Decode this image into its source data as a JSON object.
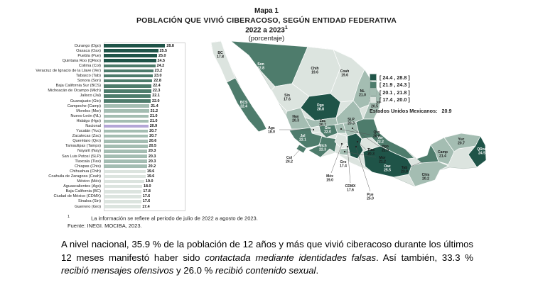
{
  "figure": {
    "title_line1": "Mapa 1",
    "title_line2": "POBLACIÓN QUE VIVIÓ CIBERACOSO, SEGÚN ENTIDAD FEDERATIVA",
    "title_line3": "2022 a 2023",
    "title_superscript": "1",
    "title_line4": "(porcentaje)",
    "footnote_marker": "1",
    "footnote_text": "La información se refiere al periodo de julio de 2022 a agosto de 2023.",
    "source": "Fuente: INEGI. MOCIBA, 2023."
  },
  "chart_data": {
    "type": "bar",
    "orientation": "horizontal",
    "title": "Población que vivió ciberacoso, según entidad federativa (porcentaje)",
    "xlabel": "",
    "ylabel": "",
    "xlim": [
      0,
      28.8
    ],
    "categories": [
      "Durango (Dgo)",
      "Oaxaca (Oax)",
      "Puebla (Pue)",
      "Quintana Roo (QRoo)",
      "Colima (Col)",
      "Veracruz de Ignacio de la Llave (Ver)",
      "Tabasco (Tab)",
      "Sonora (Son)",
      "Baja California Sur (BCS)",
      "Michoacán de Ocampo (Mich)",
      "Jalisco (Jal)",
      "Guanajuato (Gto)",
      "Campeche (Camp)",
      "Morelos (Mor)",
      "Nuevo León (NL)",
      "Hidalgo (Hgo)",
      "Nacional",
      "Yucatán (Yuc)",
      "Zacatecas (Zac)",
      "Querétaro (Qro)",
      "Tamaulipas (Tamps)",
      "Nayarit (Nay)",
      "San Luis Potosí (SLP)",
      "Tlaxcala (Tlax)",
      "Chiapas (Chis)",
      "Chihuahua (Chih)",
      "Coahuila de Zaragoza (Coah)",
      "México (Méx)",
      "Aguascalientes (Ags)",
      "Baja California (BC)",
      "Ciudad de México (CDMX)",
      "Sinaloa (Sin)",
      "Guerrero (Gro)"
    ],
    "values": [
      28.8,
      25.5,
      25.0,
      24.5,
      24.2,
      23.2,
      23.0,
      22.8,
      22.4,
      22.3,
      22.1,
      22.0,
      21.4,
      21.2,
      21.0,
      21.0,
      20.9,
      20.7,
      20.7,
      20.6,
      20.5,
      20.3,
      20.3,
      20.3,
      20.2,
      19.6,
      19.6,
      19.0,
      18.0,
      17.8,
      17.6,
      17.6,
      17.4
    ],
    "national_index": 16
  },
  "legend": {
    "ranges": [
      "[ 24.4 , 28.8 ]",
      "[ 21.9 , 24.3 ]",
      "[ 20.1 , 21.8 ]",
      "[ 17.4 , 20.0 ]"
    ],
    "colors": [
      "#1f5448",
      "#4e7c6c",
      "#a4bdb2",
      "#dce4df"
    ],
    "national_color": "#b3a6d6",
    "breaks": [
      24.4,
      21.9,
      20.1
    ],
    "national_label": "Estados Unidos Mexicanos:",
    "national_value": "20.9"
  },
  "map": {
    "states": [
      {
        "abbr": "BC",
        "value": 17.8
      },
      {
        "abbr": "Son",
        "value": 22.8
      },
      {
        "abbr": "Chih",
        "value": 19.6
      },
      {
        "abbr": "Coah",
        "value": 19.6
      },
      {
        "abbr": "NL",
        "value": 21.0
      },
      {
        "abbr": "Tamps",
        "value": 20.5
      },
      {
        "abbr": "BCS",
        "value": 22.4
      },
      {
        "abbr": "Sin",
        "value": 17.6
      },
      {
        "abbr": "Dgo",
        "value": 28.8
      },
      {
        "abbr": "Zac",
        "value": 20.7
      },
      {
        "abbr": "SLP",
        "value": 20.3
      },
      {
        "abbr": "Nay",
        "value": 20.3
      },
      {
        "abbr": "Ags",
        "value": 18.0
      },
      {
        "abbr": "Jal",
        "value": 22.1
      },
      {
        "abbr": "Gto",
        "value": 22.0
      },
      {
        "abbr": "Qro",
        "value": 20.6
      },
      {
        "abbr": "Hgo",
        "value": 21.0
      },
      {
        "abbr": "Mich",
        "value": 22.3
      },
      {
        "abbr": "Col",
        "value": 24.2
      },
      {
        "abbr": "Méx",
        "value": 19.0
      },
      {
        "abbr": "CDMX",
        "value": 17.6
      },
      {
        "abbr": "Tlax",
        "value": 20.3
      },
      {
        "abbr": "Mor",
        "value": 21.2
      },
      {
        "abbr": "Pue",
        "value": 25.0
      },
      {
        "abbr": "Ver",
        "value": 23.2
      },
      {
        "abbr": "Gro",
        "value": 17.4
      },
      {
        "abbr": "Oax",
        "value": 25.5
      },
      {
        "abbr": "Tab",
        "value": 23.0
      },
      {
        "abbr": "Chis",
        "value": 20.2
      },
      {
        "abbr": "Camp",
        "value": 21.4
      },
      {
        "abbr": "Yuc",
        "value": 20.7
      },
      {
        "abbr": "QRoo",
        "value": 24.5
      }
    ]
  },
  "paragraph": {
    "segments": [
      {
        "text": "A nivel nacional, 35.9 % de la población de 12 años y más que vivió ciberacoso durante los últimos 12 meses manifestó haber sido ",
        "italic": false
      },
      {
        "text": "contactada mediante identidades falsas",
        "italic": true
      },
      {
        "text": ". Así también, 33.3 % ",
        "italic": false
      },
      {
        "text": "recibió mensajes ofensivos",
        "italic": true
      },
      {
        "text": " y 26.0 % ",
        "italic": false
      },
      {
        "text": "recibió contenido sexual",
        "italic": true
      },
      {
        "text": ".",
        "italic": false
      }
    ]
  }
}
